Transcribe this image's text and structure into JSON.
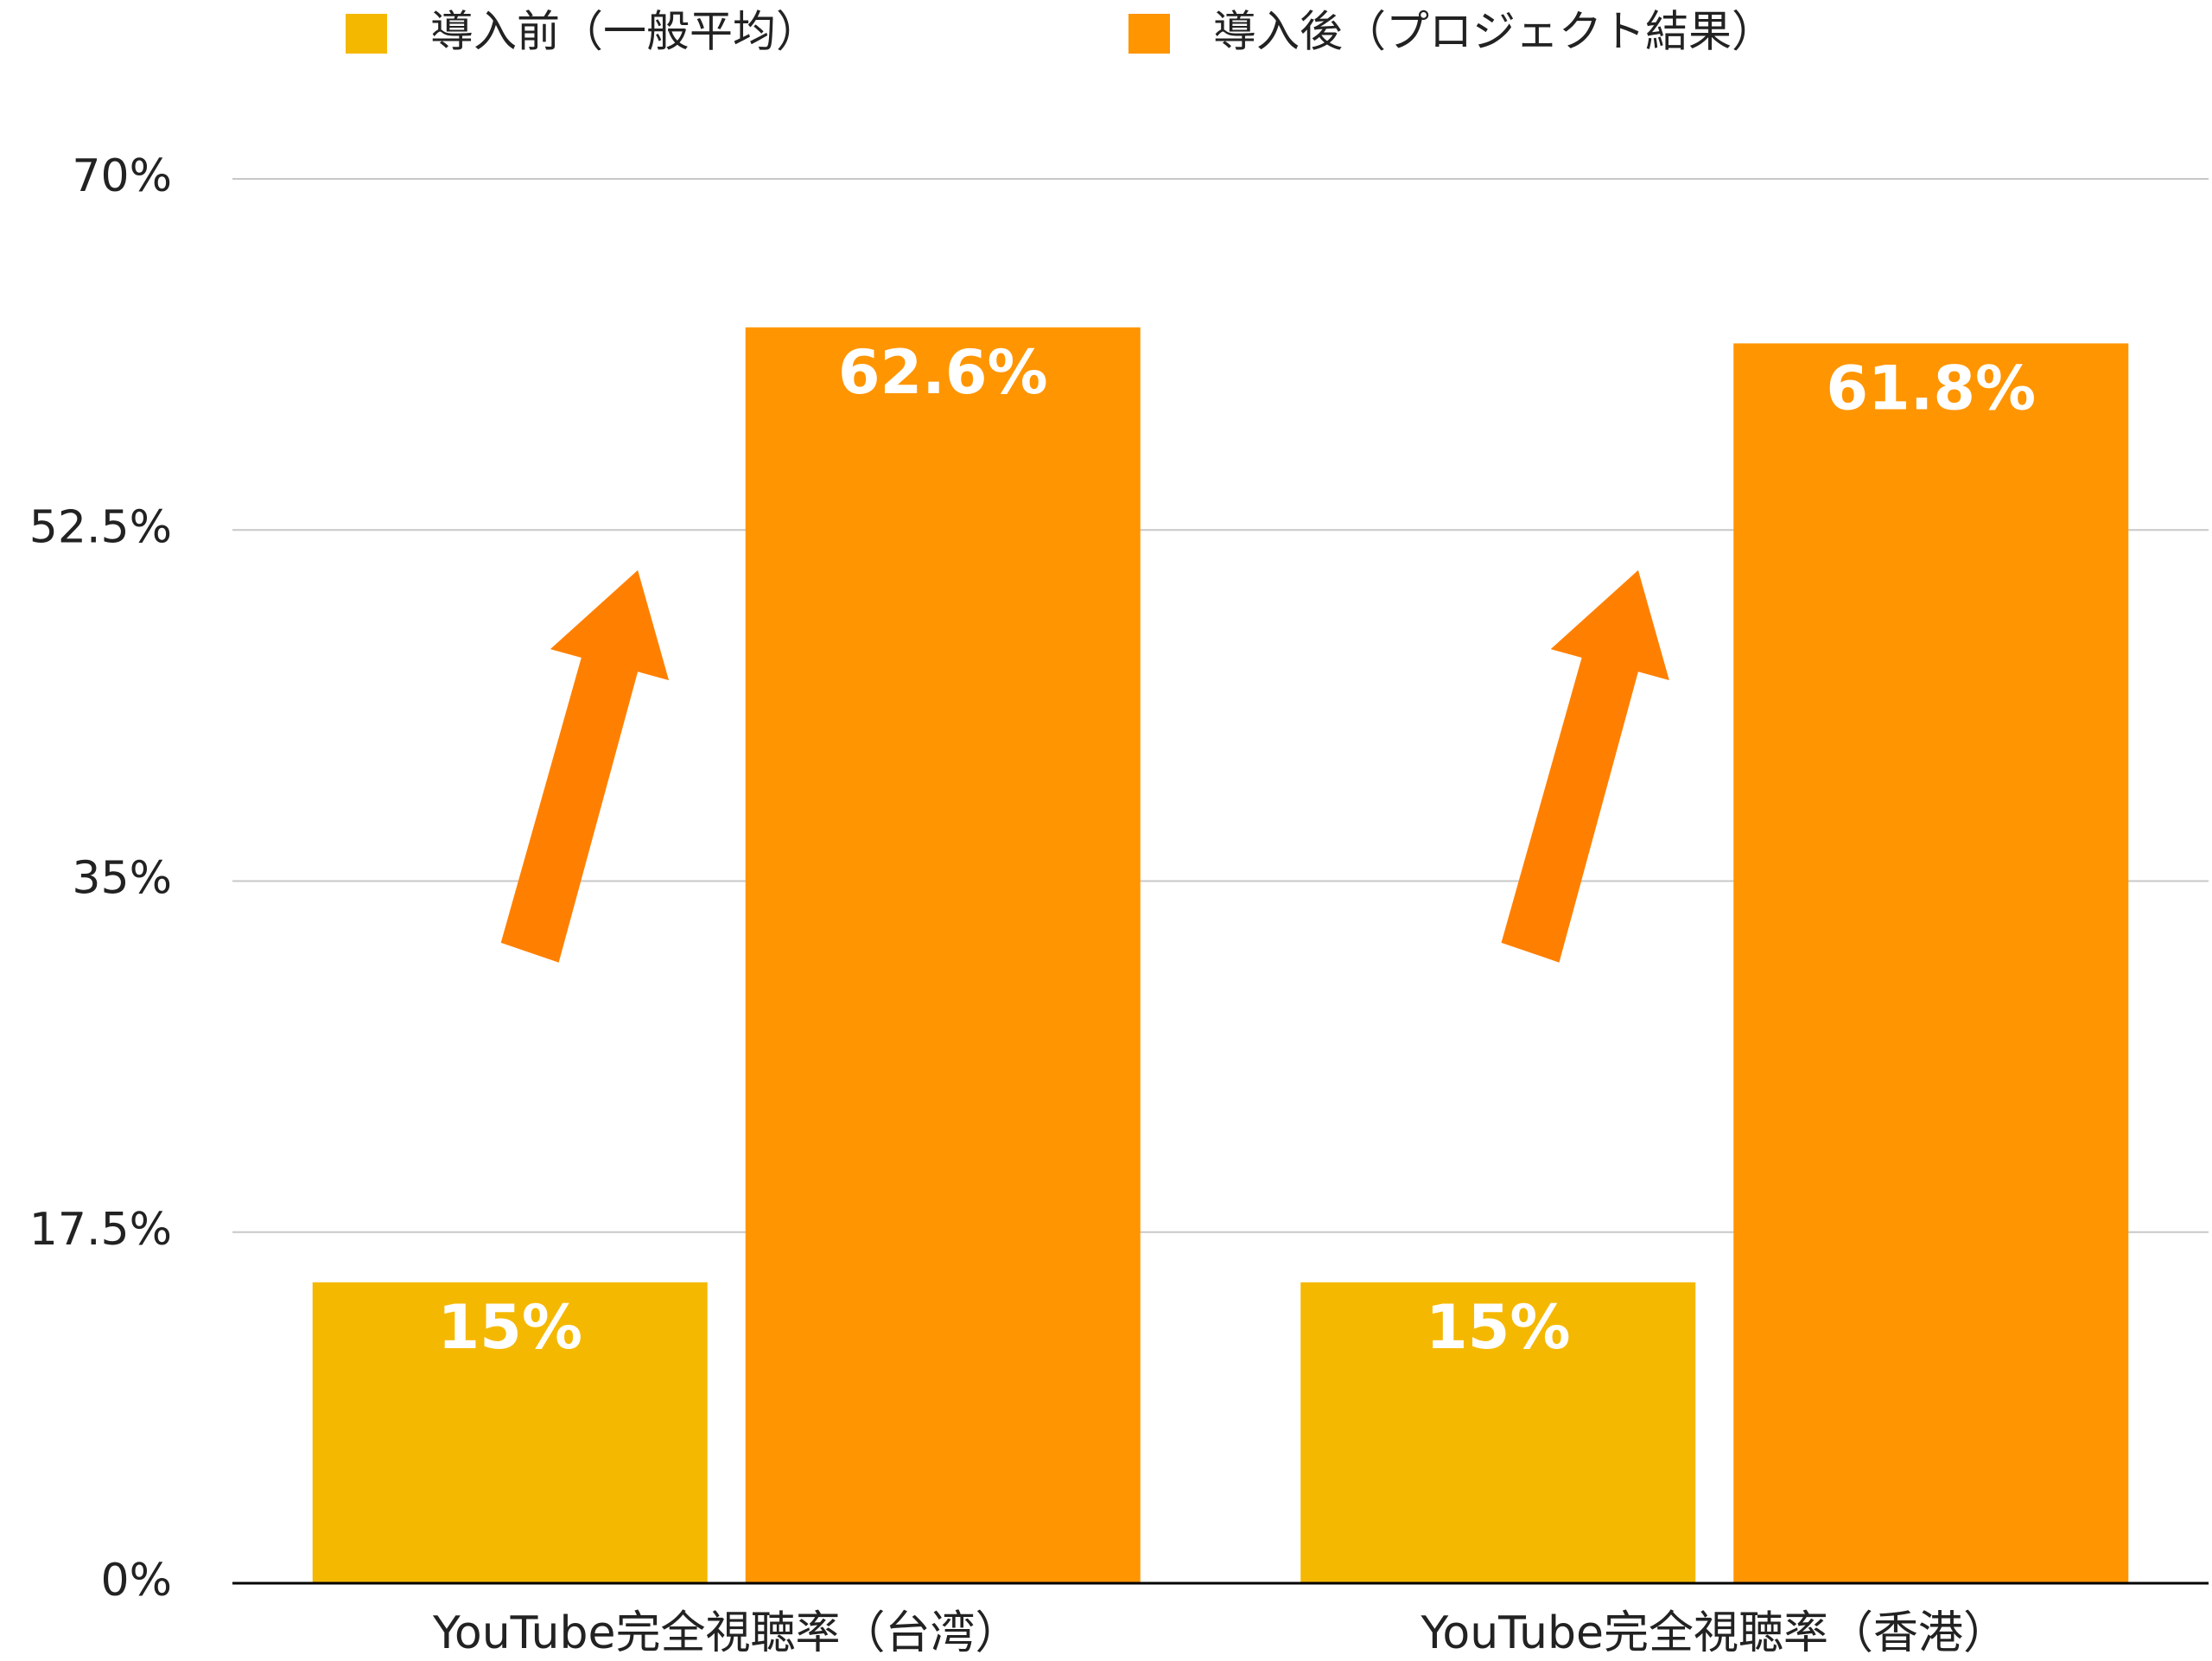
{
  "chart_data": {
    "type": "bar",
    "categories": [
      "YouTube完全視聴率（台湾）",
      "YouTube完全視聴率（香港）"
    ],
    "series": [
      {
        "name": "導入前（一般平均）",
        "color": "#f5b800",
        "values": [
          15,
          15
        ],
        "value_labels": [
          "15%",
          "15%"
        ]
      },
      {
        "name": "導入後（プロジェクト結果）",
        "color": "#ff9500",
        "values": [
          62.6,
          61.8
        ],
        "value_labels": [
          "62.6%",
          "61.8%"
        ]
      }
    ],
    "ylim": [
      0,
      70
    ],
    "yticks": [
      {
        "value": 0,
        "label": "0%"
      },
      {
        "value": 17.5,
        "label": "17.5%"
      },
      {
        "value": 35,
        "label": "35%"
      },
      {
        "value": 52.5,
        "label": "52.5%"
      },
      {
        "value": 70,
        "label": "70%"
      }
    ],
    "grid": true,
    "legend": "top"
  }
}
